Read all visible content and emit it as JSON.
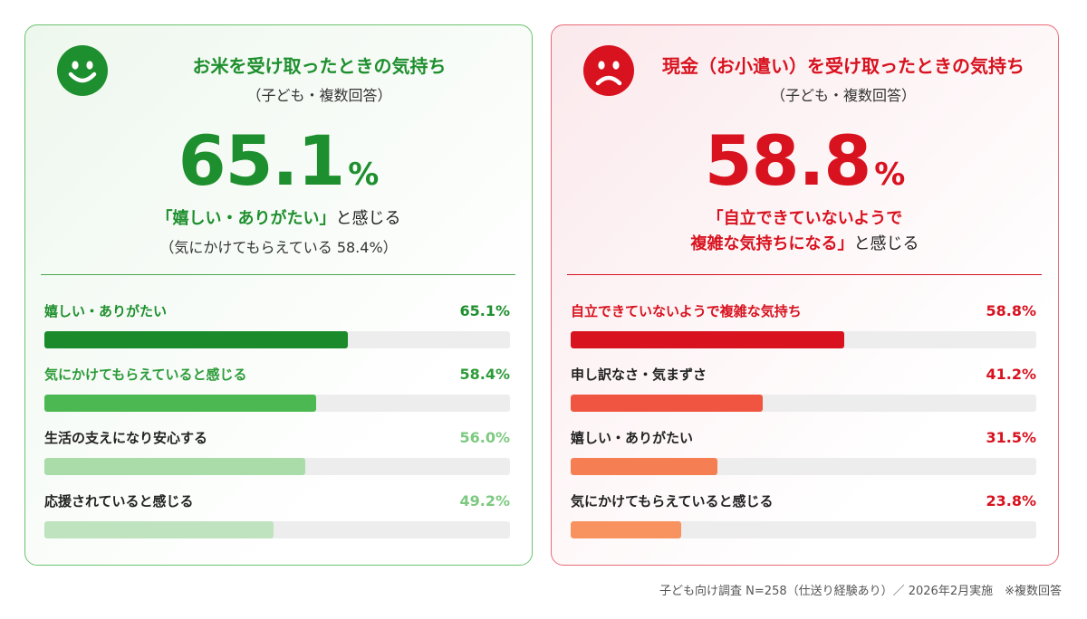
{
  "left_panel": {
    "title": "お米を受け取ったときの気持ち",
    "subtitle": "（子ども・複数回答）",
    "big_number": "65.1",
    "big_unit": "%",
    "headline_highlight": "「嬉しい・ありがたい」",
    "headline_suffix": "と感じる",
    "headline_note": "（気にかけてもらえている 58.4%）",
    "face_icon": "smiley-icon",
    "accent": "#1e8f2e"
  },
  "right_panel": {
    "title": "現金（お小遣い）を受け取ったときの気持ち",
    "subtitle": "（子ども・複数回答）",
    "big_number": "58.8",
    "big_unit": "%",
    "headline_highlight_1": "「自立できていないようで",
    "headline_highlight_2": "複雑な気持ちになる」",
    "headline_suffix": "と感じる",
    "face_icon": "frowny-icon",
    "accent": "#d8121f"
  },
  "footer": "子ども向け調査 N=258（仕送り経験あり）／ 2026年2月実施　※複数回答",
  "chart_data": [
    {
      "type": "bar",
      "orientation": "horizontal",
      "title": "お米を受け取ったときの気持ち",
      "unit": "%",
      "xlim": [
        0,
        100
      ],
      "categories": [
        "嬉しい・ありがたい",
        "気にかけてもらえていると感じる",
        "生活の支えになり安心する",
        "応援されていると感じる"
      ],
      "values": [
        65.1,
        58.4,
        56.0,
        49.2
      ],
      "value_labels": [
        "65.1%",
        "58.4%",
        "56.0%",
        "49.2%"
      ],
      "colors": [
        "#1a8a2b",
        "#4bb852",
        "#a9dca9",
        "#bfe3be"
      ],
      "label_colors": [
        "#1e8f2e",
        "#2c9b38",
        "#7cc97f",
        "#7cc97f"
      ],
      "category_label_colors": [
        "#1e8f2e",
        "#2c9b38",
        "#222222",
        "#222222"
      ]
    },
    {
      "type": "bar",
      "orientation": "horizontal",
      "title": "現金（お小遣い）を受け取ったときの気持ち",
      "unit": "%",
      "xlim": [
        0,
        100
      ],
      "categories": [
        "自立できていないようで複雑な気持ち",
        "申し訳なさ・気まずさ",
        "嬉しい・ありがたい",
        "気にかけてもらえていると感じる"
      ],
      "values": [
        58.8,
        41.2,
        31.5,
        23.8
      ],
      "value_labels": [
        "58.8%",
        "41.2%",
        "31.5%",
        "23.8%"
      ],
      "colors": [
        "#d8121f",
        "#ef5540",
        "#f57f52",
        "#f8935f"
      ],
      "label_colors": [
        "#d8121f",
        "#d8121f",
        "#d8121f",
        "#d8121f"
      ],
      "category_label_colors": [
        "#d8121f",
        "#222222",
        "#222222",
        "#222222"
      ]
    }
  ]
}
